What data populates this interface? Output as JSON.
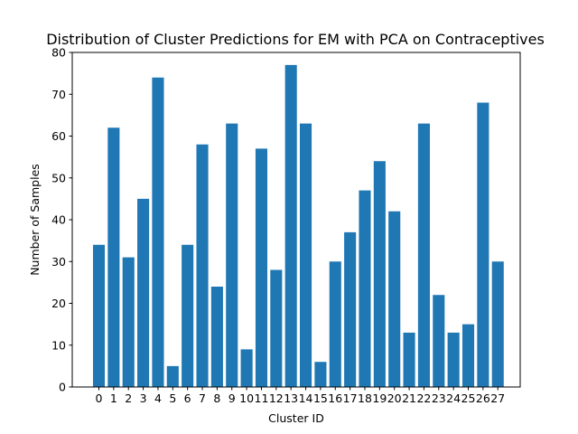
{
  "chart_data": {
    "type": "bar",
    "title": "Distribution of Cluster Predictions for EM with PCA on Contraceptives",
    "xlabel": "Cluster ID",
    "ylabel": "Number of Samples",
    "categories": [
      "0",
      "1",
      "2",
      "3",
      "4",
      "5",
      "6",
      "7",
      "8",
      "9",
      "10",
      "11",
      "12",
      "13",
      "14",
      "15",
      "16",
      "17",
      "18",
      "19",
      "20",
      "21",
      "22",
      "23",
      "24",
      "25",
      "26",
      "27"
    ],
    "values": [
      34,
      62,
      31,
      45,
      74,
      5,
      34,
      58,
      24,
      63,
      9,
      57,
      28,
      77,
      63,
      6,
      30,
      37,
      47,
      54,
      42,
      13,
      63,
      22,
      13,
      15,
      68,
      30
    ],
    "ylim": [
      0,
      80
    ],
    "yticks": [
      0,
      10,
      20,
      30,
      40,
      50,
      60,
      70,
      80
    ],
    "grid": false,
    "legend": "none",
    "bar_color": "#1f77b4"
  }
}
